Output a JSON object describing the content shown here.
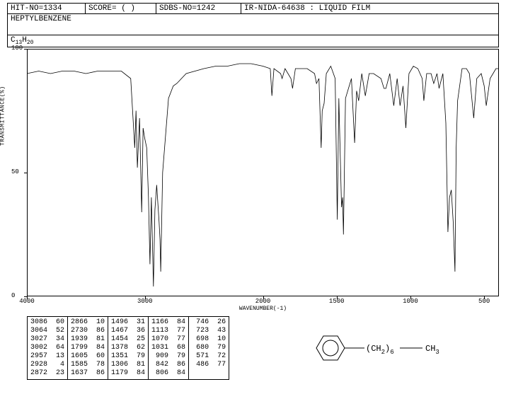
{
  "header": {
    "hit_no": "HIT-NO=1334",
    "score": "SCORE=  ( )",
    "sdbs_no": "SDBS-NO=1242",
    "ir_info": "IR-NIDA-64638 : LIQUID FILM"
  },
  "compound_name": "HEPTYLBENZENE",
  "formula_parts": {
    "c": "C",
    "c_n": "13",
    "h": "H",
    "h_n": "20"
  },
  "chart": {
    "ylabel": "TRANSMITTANCE(%)",
    "xlabel": "WAVENUMBER(-1)",
    "yticks": [
      {
        "v": 100,
        "label": "100"
      },
      {
        "v": 50,
        "label": "50"
      },
      {
        "v": 0,
        "label": "0"
      }
    ],
    "xticks": [
      {
        "v": 4000,
        "label": "4000"
      },
      {
        "v": 3000,
        "label": "3000"
      },
      {
        "v": 2000,
        "label": "2000"
      },
      {
        "v": 1500,
        "label": "1500"
      },
      {
        "v": 1000,
        "label": "1000"
      },
      {
        "v": 500,
        "label": "500"
      }
    ],
    "xlim": [
      4000,
      400
    ],
    "ylim": [
      0,
      100
    ],
    "line_color": "#000000",
    "background_color": "#ffffff",
    "line_width": 0.8,
    "spectrum": [
      [
        4000,
        90
      ],
      [
        3900,
        91
      ],
      [
        3800,
        90
      ],
      [
        3700,
        91
      ],
      [
        3600,
        91
      ],
      [
        3500,
        90
      ],
      [
        3400,
        91
      ],
      [
        3300,
        91
      ],
      [
        3200,
        91
      ],
      [
        3120,
        88
      ],
      [
        3086,
        60
      ],
      [
        3075,
        75
      ],
      [
        3064,
        52
      ],
      [
        3045,
        72
      ],
      [
        3027,
        34
      ],
      [
        3015,
        68
      ],
      [
        3002,
        64
      ],
      [
        2985,
        60
      ],
      [
        2970,
        40
      ],
      [
        2957,
        13
      ],
      [
        2945,
        40
      ],
      [
        2928,
        4
      ],
      [
        2915,
        35
      ],
      [
        2900,
        45
      ],
      [
        2880,
        30
      ],
      [
        2872,
        23
      ],
      [
        2866,
        10
      ],
      [
        2850,
        50
      ],
      [
        2800,
        80
      ],
      [
        2760,
        85
      ],
      [
        2730,
        86
      ],
      [
        2650,
        90
      ],
      [
        2500,
        92
      ],
      [
        2400,
        93
      ],
      [
        2300,
        93
      ],
      [
        2200,
        94
      ],
      [
        2100,
        94
      ],
      [
        2000,
        93
      ],
      [
        1950,
        92
      ],
      [
        1939,
        81
      ],
      [
        1925,
        92
      ],
      [
        1880,
        90
      ],
      [
        1870,
        88
      ],
      [
        1850,
        92
      ],
      [
        1810,
        88
      ],
      [
        1799,
        84
      ],
      [
        1780,
        92
      ],
      [
        1730,
        92
      ],
      [
        1700,
        92
      ],
      [
        1650,
        90
      ],
      [
        1637,
        86
      ],
      [
        1620,
        88
      ],
      [
        1605,
        60
      ],
      [
        1598,
        75
      ],
      [
        1585,
        78
      ],
      [
        1570,
        90
      ],
      [
        1540,
        93
      ],
      [
        1510,
        88
      ],
      [
        1496,
        31
      ],
      [
        1485,
        80
      ],
      [
        1467,
        36
      ],
      [
        1460,
        40
      ],
      [
        1454,
        25
      ],
      [
        1440,
        80
      ],
      [
        1400,
        88
      ],
      [
        1378,
        62
      ],
      [
        1365,
        83
      ],
      [
        1351,
        79
      ],
      [
        1330,
        90
      ],
      [
        1306,
        81
      ],
      [
        1280,
        90
      ],
      [
        1250,
        90
      ],
      [
        1200,
        88
      ],
      [
        1179,
        84
      ],
      [
        1166,
        84
      ],
      [
        1140,
        90
      ],
      [
        1113,
        77
      ],
      [
        1090,
        88
      ],
      [
        1070,
        77
      ],
      [
        1050,
        85
      ],
      [
        1031,
        68
      ],
      [
        1010,
        90
      ],
      [
        980,
        93
      ],
      [
        950,
        92
      ],
      [
        920,
        88
      ],
      [
        909,
        79
      ],
      [
        890,
        90
      ],
      [
        860,
        90
      ],
      [
        842,
        86
      ],
      [
        820,
        90
      ],
      [
        806,
        84
      ],
      [
        780,
        90
      ],
      [
        760,
        70
      ],
      [
        746,
        26
      ],
      [
        735,
        40
      ],
      [
        723,
        43
      ],
      [
        710,
        30
      ],
      [
        698,
        10
      ],
      [
        690,
        60
      ],
      [
        680,
        79
      ],
      [
        650,
        92
      ],
      [
        620,
        92
      ],
      [
        600,
        90
      ],
      [
        571,
        72
      ],
      [
        550,
        88
      ],
      [
        520,
        90
      ],
      [
        500,
        85
      ],
      [
        486,
        77
      ],
      [
        460,
        88
      ],
      [
        440,
        90
      ],
      [
        420,
        92
      ],
      [
        400,
        92
      ]
    ]
  },
  "peaks": {
    "cols": [
      [
        [
          3086,
          60
        ],
        [
          3064,
          52
        ],
        [
          3027,
          34
        ],
        [
          3002,
          64
        ],
        [
          2957,
          13
        ],
        [
          2928,
          4
        ],
        [
          2872,
          23
        ]
      ],
      [
        [
          2866,
          10
        ],
        [
          2730,
          86
        ],
        [
          1939,
          81
        ],
        [
          1799,
          84
        ],
        [
          1605,
          60
        ],
        [
          1585,
          78
        ],
        [
          1637,
          86
        ]
      ],
      [
        [
          1496,
          31
        ],
        [
          1467,
          36
        ],
        [
          1454,
          25
        ],
        [
          1378,
          62
        ],
        [
          1351,
          79
        ],
        [
          1306,
          81
        ],
        [
          1179,
          84
        ]
      ],
      [
        [
          1166,
          84
        ],
        [
          1113,
          77
        ],
        [
          1070,
          77
        ],
        [
          1031,
          68
        ],
        [
          909,
          79
        ],
        [
          842,
          86
        ],
        [
          806,
          84
        ]
      ],
      [
        [
          746,
          26
        ],
        [
          723,
          43
        ],
        [
          698,
          10
        ],
        [
          680,
          79
        ],
        [
          571,
          72
        ],
        [
          486,
          77
        ]
      ]
    ]
  },
  "structure": {
    "chain_label_a": "(CH",
    "chain_sub_a": "2",
    "chain_label_b": ")",
    "chain_sub_b": "6",
    "end_label": "CH",
    "end_sub": "3"
  }
}
